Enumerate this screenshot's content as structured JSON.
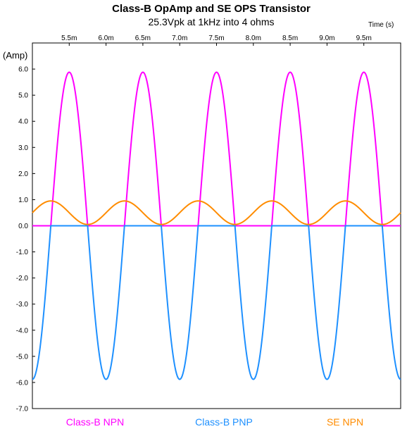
{
  "chart_data": {
    "type": "line",
    "title": "Class-B OpAmp and SE OPS Transistor",
    "subtitle": "25.3Vpk at 1kHz into 4 ohms",
    "xlabel": "Time  (s)",
    "ylabel": "(Amp)",
    "x_unit_scale": 0.001,
    "xlim": [
      5.0,
      10.0
    ],
    "ylim": [
      -7.0,
      7.0
    ],
    "x_ticks": [
      5.5,
      6.0,
      6.5,
      7.0,
      7.5,
      8.0,
      8.5,
      9.0,
      9.5
    ],
    "x_tick_labels": [
      "5.5m",
      "6.0m",
      "6.5m",
      "7.0m",
      "7.5m",
      "8.0m",
      "8.5m",
      "9.0m",
      "9.5m"
    ],
    "y_ticks": [
      6.0,
      5.0,
      4.0,
      3.0,
      2.0,
      1.0,
      0.0,
      -1.0,
      -2.0,
      -3.0,
      -4.0,
      -5.0,
      -6.0,
      -7.0
    ],
    "y_tick_labels": [
      "6.0",
      "5.0",
      "4.0",
      "3.0",
      "2.0",
      "1.0",
      "0.0",
      "-1.0",
      "-2.0",
      "-3.0",
      "-4.0",
      "-5.0",
      "-6.0",
      "-7.0"
    ],
    "grid": false,
    "legend_position": "bottom",
    "series": [
      {
        "name": "Class-B NPN",
        "color": "#ff00ff",
        "waveform": "half-wave positive sine",
        "frequency_hz": 1000,
        "peak": 5.88,
        "zero_crossing_ms": 5.25
      },
      {
        "name": "Class-B PNP",
        "color": "#1e90ff",
        "waveform": "half-wave negative sine",
        "frequency_hz": 1000,
        "peak": -5.88,
        "zero_crossing_ms": 5.25
      },
      {
        "name": "SE NPN",
        "color": "#ff8c00",
        "waveform": "sine",
        "frequency_hz": 1000,
        "offset": 0.5,
        "amplitude": 0.45,
        "zero_crossing_ms": 5.0
      }
    ]
  }
}
